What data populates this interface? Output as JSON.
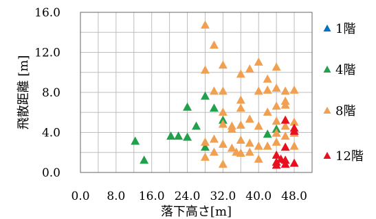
{
  "chart_data": {
    "type": "scatter",
    "xlabel": "落下高さ[m]",
    "ylabel": "飛散距離 [m]",
    "xlim": [
      0,
      52
    ],
    "ylim": [
      0,
      16
    ],
    "x_ticks": [
      "0.0",
      "8.0",
      "16.0",
      "24.0",
      "32.0",
      "40.0",
      "48.0"
    ],
    "y_ticks": [
      "0.0",
      "4.0",
      "8.0",
      "12.0",
      "16.0"
    ],
    "grid": true,
    "legend_position": "right",
    "marker": "triangle",
    "series": [
      {
        "name": "1階",
        "color": "#0070C0",
        "points": []
      },
      {
        "name": "4階",
        "color": "#22A04B",
        "points": [
          [
            12.3,
            3.1
          ],
          [
            14.3,
            1.2
          ],
          [
            20.3,
            3.6
          ],
          [
            22.0,
            3.6
          ],
          [
            24.0,
            3.5
          ],
          [
            24.0,
            6.5
          ],
          [
            26.0,
            4.6
          ],
          [
            28.0,
            2.5
          ],
          [
            28.0,
            7.6
          ],
          [
            30.0,
            6.4
          ],
          [
            32.0,
            5.2
          ],
          [
            42.0,
            3.8
          ],
          [
            44.0,
            4.3
          ]
        ]
      },
      {
        "name": "8階",
        "color": "#F0A050",
        "points": [
          [
            28.0,
            14.7
          ],
          [
            28.0,
            10.2
          ],
          [
            28.0,
            3.0
          ],
          [
            28.0,
            1.5
          ],
          [
            30.0,
            12.7
          ],
          [
            30.0,
            8.1
          ],
          [
            30.0,
            3.3
          ],
          [
            30.0,
            2.0
          ],
          [
            32.0,
            10.7
          ],
          [
            32.0,
            8.1
          ],
          [
            32.0,
            6.0
          ],
          [
            32.0,
            4.8
          ],
          [
            32.0,
            2.8
          ],
          [
            32.0,
            0.8
          ],
          [
            34.0,
            4.6
          ],
          [
            34.0,
            4.3
          ],
          [
            34.0,
            2.4
          ],
          [
            35.0,
            2.0
          ],
          [
            36.0,
            9.8
          ],
          [
            36.0,
            7.2
          ],
          [
            36.0,
            6.4
          ],
          [
            36.0,
            4.7
          ],
          [
            36.0,
            3.2
          ],
          [
            36.0,
            1.9
          ],
          [
            38.0,
            10.3
          ],
          [
            38.0,
            5.3
          ],
          [
            38.0,
            2.9
          ],
          [
            38.0,
            2.0
          ],
          [
            40.0,
            11.0
          ],
          [
            40.0,
            8.1
          ],
          [
            40.0,
            4.6
          ],
          [
            40.0,
            2.6
          ],
          [
            40.0,
            1.3
          ],
          [
            42.0,
            9.3
          ],
          [
            42.0,
            8.2
          ],
          [
            42.0,
            6.0
          ],
          [
            42.0,
            2.6
          ],
          [
            44.0,
            10.5
          ],
          [
            44.0,
            8.4
          ],
          [
            44.0,
            6.6
          ],
          [
            44.0,
            5.1
          ],
          [
            44.0,
            3.9
          ],
          [
            44.0,
            3.0
          ],
          [
            46.0,
            8.1
          ],
          [
            46.0,
            7.1
          ],
          [
            46.0,
            6.7
          ],
          [
            46.0,
            4.6
          ],
          [
            46.0,
            3.6
          ],
          [
            48.0,
            8.2
          ],
          [
            48.0,
            5.0
          ],
          [
            48.0,
            3.9
          ],
          [
            48.0,
            2.6
          ]
        ]
      },
      {
        "name": "12階",
        "color": "#E8101E",
        "points": [
          [
            44.0,
            1.7
          ],
          [
            44.0,
            1.0
          ],
          [
            44.0,
            0.7
          ],
          [
            45.0,
            1.3
          ],
          [
            46.0,
            5.2
          ],
          [
            46.0,
            2.5
          ],
          [
            46.0,
            1.2
          ],
          [
            46.0,
            0.8
          ],
          [
            48.0,
            4.4
          ],
          [
            48.0,
            4.1
          ],
          [
            48.0,
            0.9
          ]
        ]
      }
    ]
  }
}
